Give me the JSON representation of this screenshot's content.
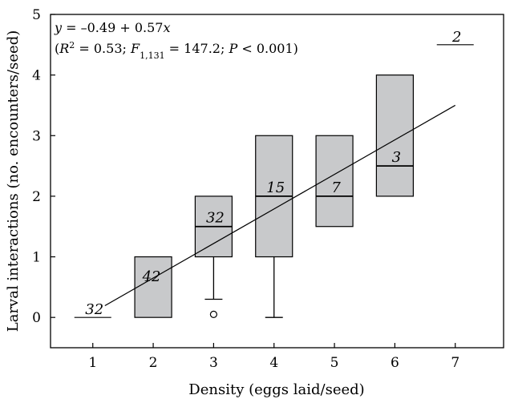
{
  "chart_data": {
    "type": "box",
    "xlabel": "Density (eggs laid/seed)",
    "ylabel": "Larval interactions (no. encounters/seed)",
    "xlim": [
      0.3,
      7.8
    ],
    "ylim": [
      -0.5,
      5
    ],
    "x_ticks": [
      1,
      2,
      3,
      4,
      5,
      6,
      7
    ],
    "y_ticks": [
      0,
      1,
      2,
      3,
      4,
      5
    ],
    "boxes": [
      {
        "x": 1,
        "q1": 0,
        "median": 0,
        "q3": 0,
        "whisker_low": null,
        "whisker_high": null,
        "outliers": [],
        "n": "32"
      },
      {
        "x": 2,
        "q1": 0,
        "median": 0,
        "q3": 1,
        "whisker_low": null,
        "whisker_high": null,
        "outliers": [],
        "n": "42"
      },
      {
        "x": 3,
        "q1": 1,
        "median": 1.5,
        "q3": 2,
        "whisker_low": 0.3,
        "whisker_high": null,
        "outliers": [
          0.05
        ],
        "n": "32"
      },
      {
        "x": 4,
        "q1": 1,
        "median": 2,
        "q3": 3,
        "whisker_low": 0,
        "whisker_high": null,
        "outliers": [],
        "n": "15"
      },
      {
        "x": 5,
        "q1": 1.5,
        "median": 2,
        "q3": 3,
        "whisker_low": null,
        "whisker_high": null,
        "outliers": [],
        "n": "7"
      },
      {
        "x": 6,
        "q1": 2,
        "median": 2.5,
        "q3": 4,
        "whisker_low": null,
        "whisker_high": null,
        "outliers": [],
        "n": "3"
      },
      {
        "x": 7,
        "q1": 4.5,
        "median": 4.5,
        "q3": 4.5,
        "whisker_low": null,
        "whisker_high": null,
        "outliers": [],
        "n": "2"
      }
    ],
    "regression": {
      "intercept": -0.49,
      "slope": 0.57,
      "x_from": 1.2,
      "x_to": 7.0
    },
    "annotation": {
      "line1": "y = –0.49 + 0.57x",
      "r2": "0.53",
      "df": "1,131",
      "F": "147.2",
      "P": "< 0.001"
    }
  },
  "colors": {
    "box_fill": "#c8c9cb",
    "stroke": "#000000"
  }
}
